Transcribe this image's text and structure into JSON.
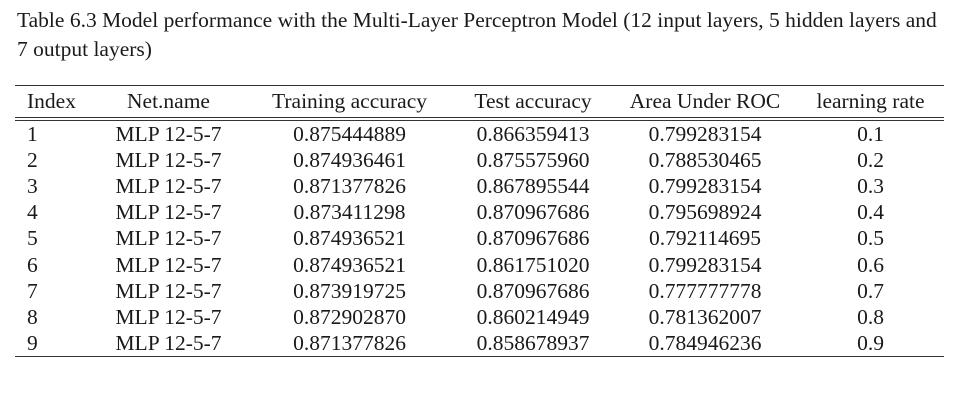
{
  "caption": "Table 6.3 Model performance with the Multi-Layer Perceptron Model (12 input layers, 5 hidden layers and 7 output layers)",
  "table": {
    "headers": [
      "Index",
      "Net.name",
      "Training accuracy",
      "Test accuracy",
      "Area Under ROC",
      "learning rate"
    ],
    "rows": [
      [
        "1",
        "MLP 12-5-7",
        "0.875444889",
        "0.866359413",
        "0.799283154",
        "0.1"
      ],
      [
        "2",
        "MLP 12-5-7",
        "0.874936461",
        "0.875575960",
        "0.788530465",
        "0.2"
      ],
      [
        "3",
        "MLP 12-5-7",
        "0.871377826",
        "0.867895544",
        "0.799283154",
        "0.3"
      ],
      [
        "4",
        "MLP 12-5-7",
        "0.873411298",
        "0.870967686",
        "0.795698924",
        "0.4"
      ],
      [
        "5",
        "MLP 12-5-7",
        "0.874936521",
        "0.870967686",
        "0.792114695",
        "0.5"
      ],
      [
        "6",
        "MLP 12-5-7",
        "0.874936521",
        "0.861751020",
        "0.799283154",
        "0.6"
      ],
      [
        "7",
        "MLP 12-5-7",
        "0.873919725",
        "0.870967686",
        "0.777777778",
        "0.7"
      ],
      [
        "8",
        "MLP 12-5-7",
        "0.872902870",
        "0.860214949",
        "0.781362007",
        "0.8"
      ],
      [
        "9",
        "MLP 12-5-7",
        "0.871377826",
        "0.858678937",
        "0.784946236",
        "0.9"
      ]
    ]
  }
}
